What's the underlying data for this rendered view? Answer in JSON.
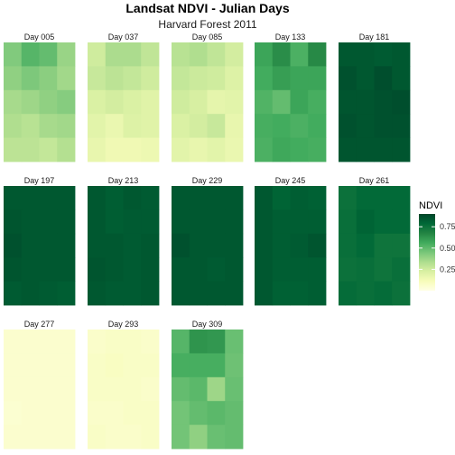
{
  "chart_data": {
    "type": "heatmap",
    "title": "Landsat NDVI - Julian Days",
    "subtitle": "Harvard Forest 2011",
    "legend": {
      "title": "NDVI",
      "ticks": [
        0.25,
        0.5,
        0.75
      ],
      "tick_labels": [
        "0.25",
        "0.50",
        "0.75"
      ],
      "range": [
        0.0,
        0.9
      ],
      "placement": "right"
    },
    "color_scale": [
      "#ffffe5",
      "#f7fcb9",
      "#d9f0a3",
      "#addd8e",
      "#78c679",
      "#41ab5d",
      "#238443",
      "#006837",
      "#004529"
    ],
    "grid": {
      "rows": 5,
      "cols": 4
    },
    "facets": [
      {
        "label": "Day 005",
        "values": [
          [
            0.43,
            0.52,
            0.49,
            0.38
          ],
          [
            0.4,
            0.44,
            0.41,
            0.36
          ],
          [
            0.35,
            0.37,
            0.4,
            0.42
          ],
          [
            0.33,
            0.31,
            0.35,
            0.36
          ],
          [
            0.3,
            0.3,
            0.28,
            0.32
          ]
        ]
      },
      {
        "label": "Day 037",
        "values": [
          [
            0.25,
            0.34,
            0.34,
            0.29
          ],
          [
            0.27,
            0.3,
            0.28,
            0.25
          ],
          [
            0.22,
            0.24,
            0.22,
            0.2
          ],
          [
            0.19,
            0.16,
            0.21,
            0.2
          ],
          [
            0.17,
            0.14,
            0.14,
            0.15
          ]
        ]
      },
      {
        "label": "Day 085",
        "values": [
          [
            0.31,
            0.33,
            0.29,
            0.24
          ],
          [
            0.28,
            0.26,
            0.25,
            0.21
          ],
          [
            0.25,
            0.23,
            0.18,
            0.19
          ],
          [
            0.22,
            0.24,
            0.27,
            0.17
          ],
          [
            0.19,
            0.17,
            0.19,
            0.16
          ]
        ]
      },
      {
        "label": "Day 133",
        "values": [
          [
            0.58,
            0.65,
            0.54,
            0.66
          ],
          [
            0.56,
            0.6,
            0.58,
            0.58
          ],
          [
            0.53,
            0.49,
            0.58,
            0.55
          ],
          [
            0.55,
            0.56,
            0.54,
            0.56
          ],
          [
            0.54,
            0.57,
            0.56,
            0.55
          ]
        ]
      },
      {
        "label": "Day 181",
        "values": [
          [
            0.84,
            0.84,
            0.83,
            0.84
          ],
          [
            0.86,
            0.84,
            0.87,
            0.84
          ],
          [
            0.85,
            0.85,
            0.86,
            0.87
          ],
          [
            0.86,
            0.85,
            0.86,
            0.86
          ],
          [
            0.85,
            0.85,
            0.85,
            0.85
          ]
        ]
      },
      {
        "label": "Day 197",
        "values": [
          [
            0.84,
            0.84,
            0.84,
            0.84
          ],
          [
            0.85,
            0.84,
            0.84,
            0.84
          ],
          [
            0.86,
            0.84,
            0.84,
            0.84
          ],
          [
            0.85,
            0.84,
            0.84,
            0.84
          ],
          [
            0.83,
            0.84,
            0.83,
            0.82
          ]
        ]
      },
      {
        "label": "Day 213",
        "values": [
          [
            0.84,
            0.82,
            0.84,
            0.83
          ],
          [
            0.84,
            0.82,
            0.83,
            0.83
          ],
          [
            0.84,
            0.84,
            0.83,
            0.84
          ],
          [
            0.85,
            0.84,
            0.83,
            0.84
          ],
          [
            0.84,
            0.83,
            0.83,
            0.84
          ]
        ]
      },
      {
        "label": "Day 229",
        "values": [
          [
            0.84,
            0.84,
            0.84,
            0.84
          ],
          [
            0.84,
            0.84,
            0.84,
            0.84
          ],
          [
            0.86,
            0.84,
            0.84,
            0.84
          ],
          [
            0.84,
            0.84,
            0.83,
            0.84
          ],
          [
            0.84,
            0.84,
            0.84,
            0.84
          ]
        ]
      },
      {
        "label": "Day 245",
        "values": [
          [
            0.84,
            0.8,
            0.82,
            0.81
          ],
          [
            0.84,
            0.82,
            0.82,
            0.82
          ],
          [
            0.84,
            0.82,
            0.83,
            0.85
          ],
          [
            0.84,
            0.82,
            0.82,
            0.82
          ],
          [
            0.84,
            0.81,
            0.81,
            0.82
          ]
        ]
      },
      {
        "label": "Day 261",
        "values": [
          [
            0.75,
            0.78,
            0.78,
            0.78
          ],
          [
            0.76,
            0.8,
            0.78,
            0.78
          ],
          [
            0.76,
            0.78,
            0.74,
            0.74
          ],
          [
            0.75,
            0.76,
            0.74,
            0.76
          ],
          [
            0.77,
            0.76,
            0.77,
            0.75
          ]
        ]
      },
      {
        "label": "Day 277",
        "values": [
          [
            0.06,
            0.06,
            0.06,
            0.06
          ],
          [
            0.06,
            0.06,
            0.06,
            0.06
          ],
          [
            0.06,
            0.06,
            0.06,
            0.06
          ],
          [
            0.05,
            0.06,
            0.06,
            0.06
          ],
          [
            0.06,
            0.06,
            0.06,
            0.06
          ]
        ]
      },
      {
        "label": "Day 293",
        "values": [
          [
            0.07,
            0.08,
            0.08,
            0.07
          ],
          [
            0.08,
            0.09,
            0.08,
            0.08
          ],
          [
            0.08,
            0.08,
            0.08,
            0.07
          ],
          [
            0.07,
            0.07,
            0.08,
            0.08
          ],
          [
            0.08,
            0.07,
            0.07,
            0.08
          ]
        ]
      },
      {
        "label": "Day 309",
        "values": [
          [
            0.52,
            0.63,
            0.62,
            0.48
          ],
          [
            0.55,
            0.55,
            0.55,
            0.47
          ],
          [
            0.49,
            0.51,
            0.37,
            0.48
          ],
          [
            0.46,
            0.49,
            0.51,
            0.49
          ],
          [
            0.46,
            0.4,
            0.48,
            0.49
          ]
        ]
      }
    ]
  }
}
